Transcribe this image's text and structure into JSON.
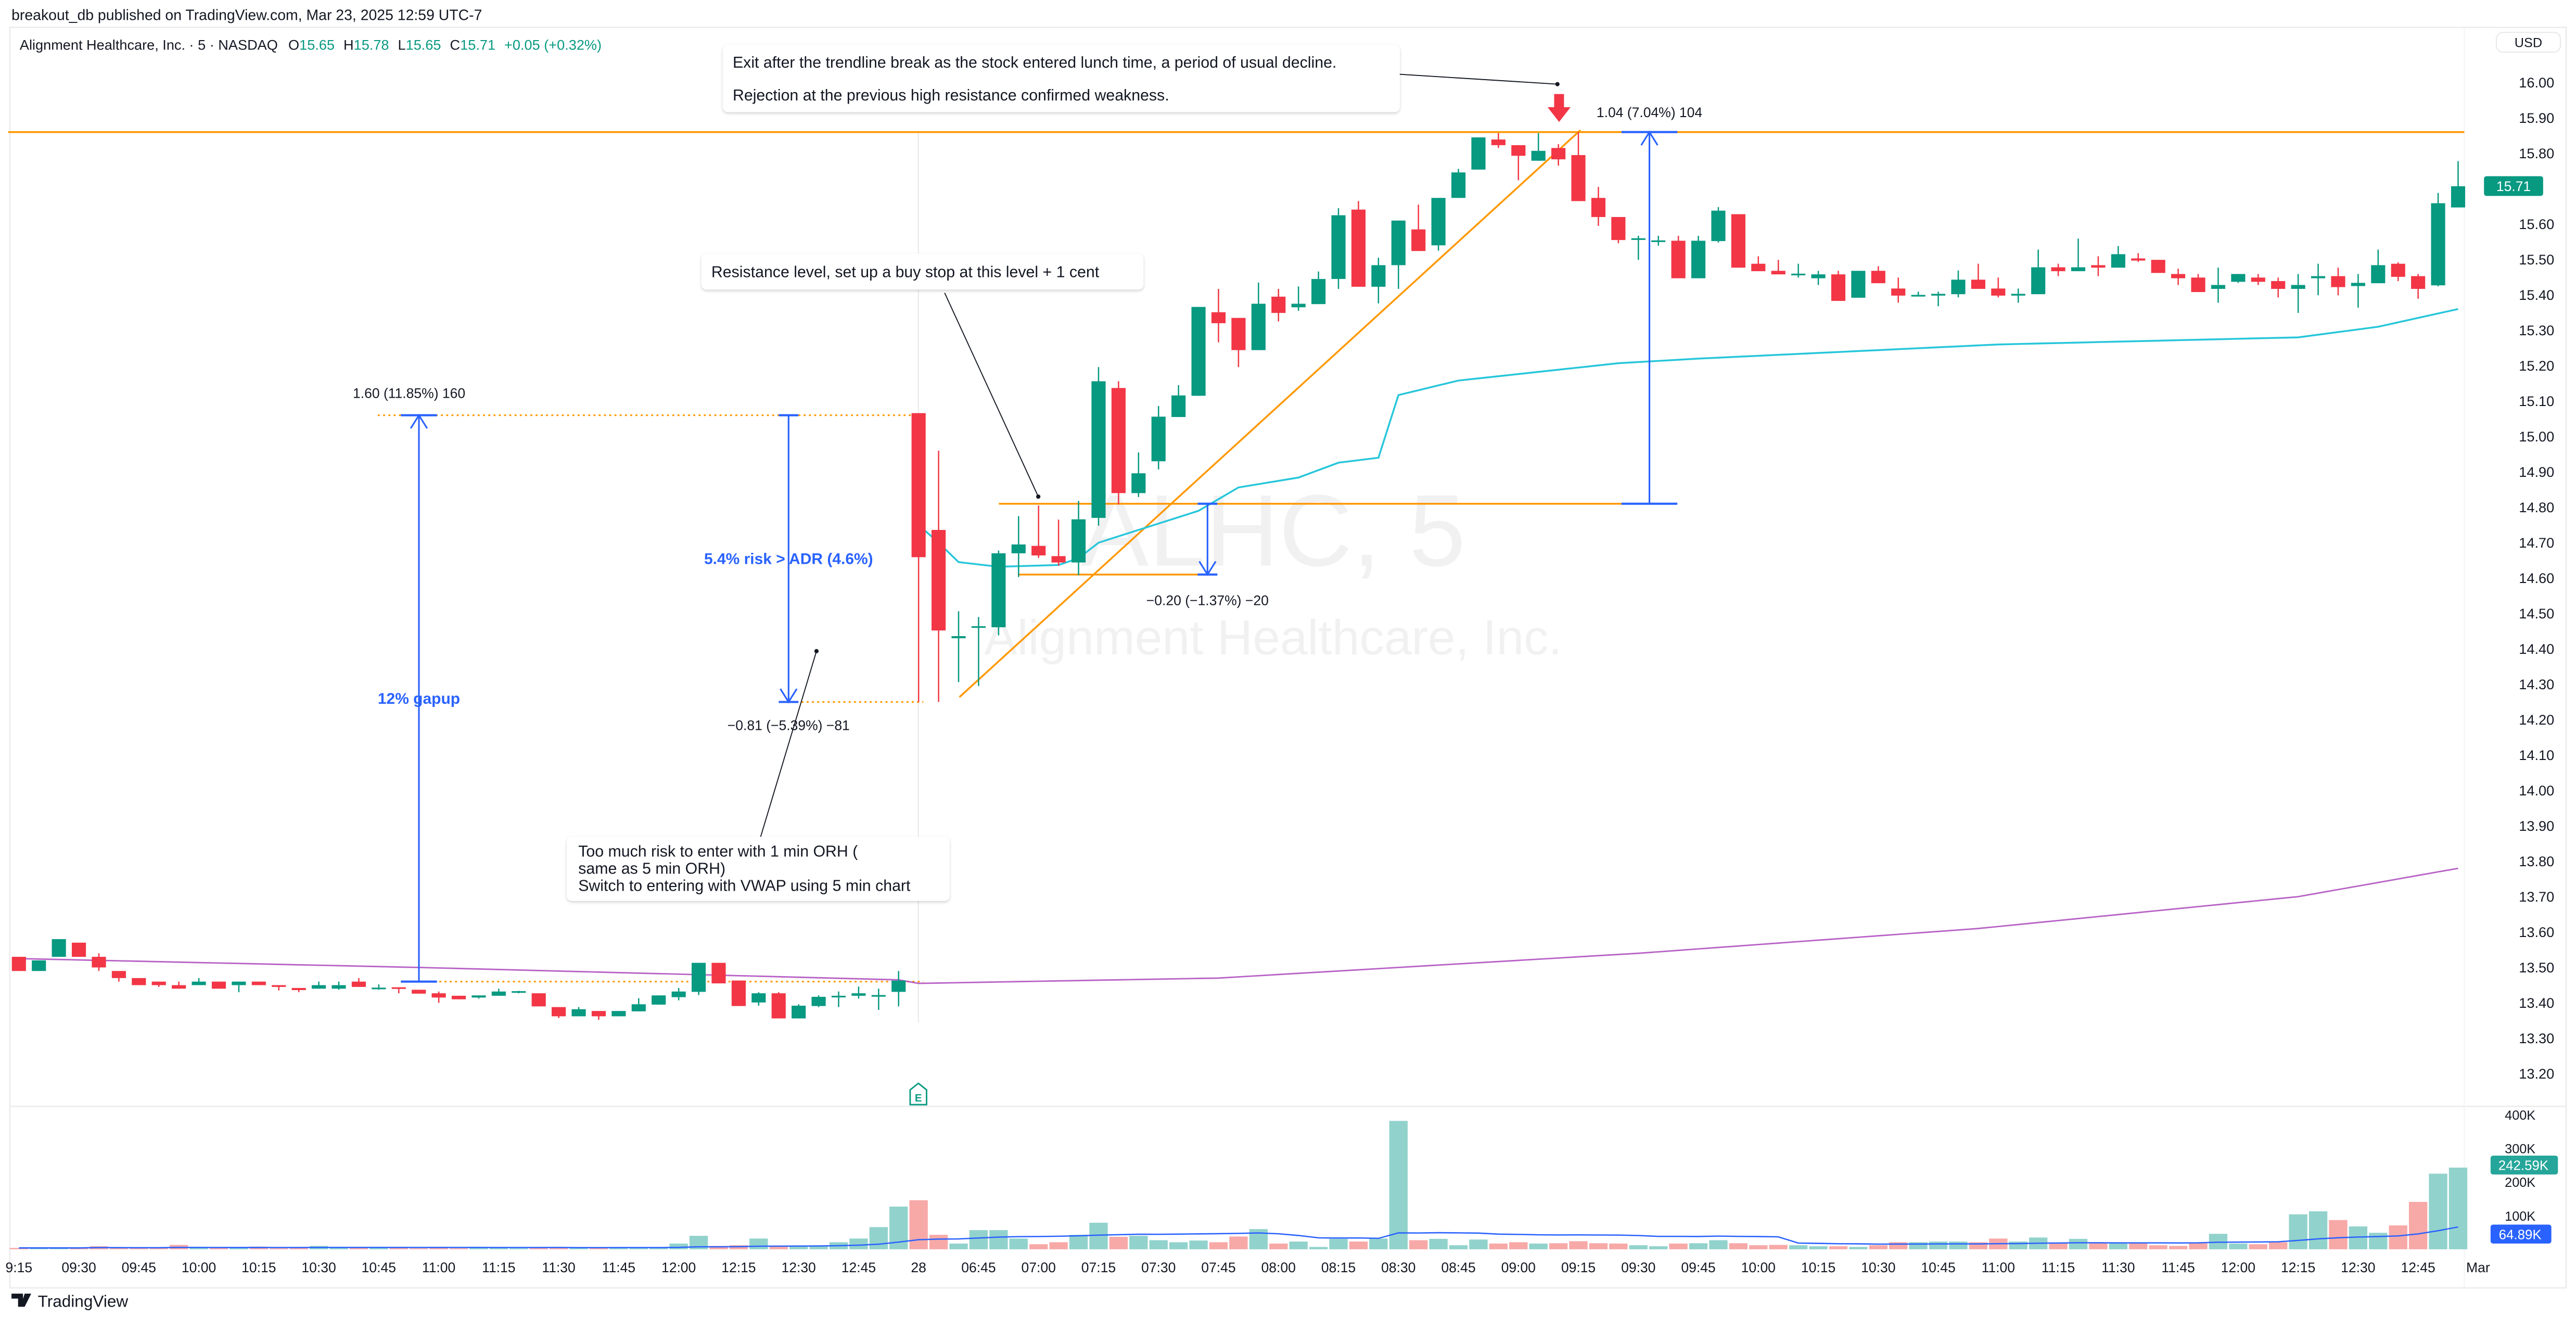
{
  "header": {
    "published": "breakout_db published on TradingView.com, Mar 23, 2025 12:59 UTC-7"
  },
  "legend": {
    "symbol": "Alignment Healthcare, Inc. · 5 · NASDAQ",
    "o_label": "O",
    "o": "15.65",
    "h_label": "H",
    "h": "15.78",
    "l_label": "L",
    "l": "15.65",
    "c_label": "C",
    "c": "15.71",
    "change": "+0.05 (+0.32%)"
  },
  "watermark": {
    "ticker": "ALHC, 5",
    "name": "Alignment Healthcare, Inc."
  },
  "annotations": {
    "exit_line1": "Exit after the trendline break as the stock entered lunch time, a period of usual decline.",
    "exit_line2": "Rejection at the previous high resistance confirmed weakness.",
    "resistance": "Resistance level, set up a buy stop at this level + 1 cent",
    "risk_line1": "Too much risk to enter with 1 min ORH (",
    "risk_line2": "same as 5 min ORH)",
    "risk_line3": "Switch to entering with VWAP using 5 min chart",
    "gapup_measure": "1.60 (11.85%) 160",
    "gapup_label": "12% gapup",
    "risk_measure": "−0.81 (−5.39%) −81",
    "risk_label": "5.4% risk > ADR (4.6%)",
    "stop_measure": "−0.20 (−1.37%) −20",
    "gain_measure": "1.04 (7.04%) 104",
    "earnings_marker": "E"
  },
  "price_axis": {
    "currency": "USD",
    "ticks": [
      "16.00",
      "15.90",
      "15.80",
      "15.70",
      "15.60",
      "15.50",
      "15.40",
      "15.30",
      "15.20",
      "15.10",
      "15.00",
      "14.90",
      "14.80",
      "14.70",
      "14.60",
      "14.50",
      "14.40",
      "14.30",
      "14.20",
      "14.10",
      "14.00",
      "13.90",
      "13.80",
      "13.70",
      "13.60",
      "13.50",
      "13.40",
      "13.30",
      "13.20"
    ],
    "last_price": "15.71"
  },
  "volume_axis": {
    "ticks": [
      "400K",
      "300K",
      "200K",
      "100K"
    ],
    "last_volume": "242.59K",
    "volume_ma": "64.89K"
  },
  "time_axis": {
    "labels": [
      "9:15",
      "09:30",
      "09:45",
      "10:00",
      "10:15",
      "10:30",
      "10:45",
      "11:00",
      "11:15",
      "11:30",
      "11:45",
      "12:00",
      "12:15",
      "12:30",
      "12:45",
      "28",
      "06:45",
      "07:00",
      "07:15",
      "07:30",
      "07:45",
      "08:00",
      "08:15",
      "08:30",
      "08:45",
      "09:00",
      "09:15",
      "09:30",
      "09:45",
      "10:00",
      "10:15",
      "10:30",
      "10:45",
      "11:00",
      "11:15",
      "11:30",
      "11:45",
      "12:00",
      "12:15",
      "12:30",
      "12:45",
      "Mar"
    ]
  },
  "footer": {
    "brand": "TradingView"
  },
  "colors": {
    "up": "#089981",
    "down": "#f23645",
    "up_vol": "#92d2cc",
    "down_vol": "#f7a9a7",
    "orange": "#ff9800",
    "blue": "#2962ff",
    "vwap": "#26c6da",
    "ma": "#ab47bc"
  },
  "chart_data": {
    "type": "candlestick",
    "title": "Alignment Healthcare, Inc. · 5 · NASDAQ",
    "ylabel": "USD",
    "ylim": [
      13.15,
      16.05
    ],
    "volume_ylim_k": [
      0,
      400
    ],
    "candle_fields": [
      "open",
      "high",
      "low",
      "close",
      "volume_k"
    ],
    "candles": [
      [
        13.53,
        13.53,
        13.49,
        13.49,
        4
      ],
      [
        13.49,
        13.52,
        13.49,
        13.52,
        4
      ],
      [
        13.53,
        13.58,
        13.53,
        13.58,
        4
      ],
      [
        13.57,
        13.57,
        13.53,
        13.53,
        4
      ],
      [
        13.53,
        13.54,
        13.49,
        13.5,
        9
      ],
      [
        13.49,
        13.49,
        13.46,
        13.47,
        4
      ],
      [
        13.47,
        13.47,
        13.45,
        13.45,
        4
      ],
      [
        13.46,
        13.46,
        13.445,
        13.45,
        4
      ],
      [
        13.45,
        13.46,
        13.44,
        13.44,
        13
      ],
      [
        13.45,
        13.47,
        13.45,
        13.46,
        4
      ],
      [
        13.46,
        13.46,
        13.44,
        13.44,
        4
      ],
      [
        13.45,
        13.46,
        13.43,
        13.46,
        4
      ],
      [
        13.46,
        13.46,
        13.45,
        13.45,
        8
      ],
      [
        13.45,
        13.45,
        13.435,
        13.445,
        3
      ],
      [
        13.442,
        13.442,
        13.43,
        13.436,
        5
      ],
      [
        13.44,
        13.46,
        13.44,
        13.45,
        10
      ],
      [
        13.44,
        13.46,
        13.437,
        13.45,
        4
      ],
      [
        13.46,
        13.47,
        13.445,
        13.445,
        5
      ],
      [
        13.44,
        13.452,
        13.437,
        13.443,
        6
      ],
      [
        13.444,
        13.444,
        13.427,
        13.442,
        6
      ],
      [
        13.437,
        13.437,
        13.426,
        13.426,
        3
      ],
      [
        13.427,
        13.432,
        13.4,
        13.415,
        5
      ],
      [
        13.42,
        13.42,
        13.41,
        13.41,
        3
      ],
      [
        13.415,
        13.421,
        13.412,
        13.421,
        6
      ],
      [
        13.42,
        13.44,
        13.42,
        13.432,
        5
      ],
      [
        13.43,
        13.434,
        13.427,
        13.433,
        3
      ],
      [
        13.427,
        13.427,
        13.39,
        13.39,
        5
      ],
      [
        13.388,
        13.388,
        13.357,
        13.362,
        6
      ],
      [
        13.362,
        13.388,
        13.362,
        13.382,
        4
      ],
      [
        13.377,
        13.377,
        13.352,
        13.362,
        4
      ],
      [
        13.362,
        13.377,
        13.362,
        13.377,
        5
      ],
      [
        13.376,
        13.413,
        13.376,
        13.396,
        6
      ],
      [
        13.395,
        13.421,
        13.395,
        13.421,
        6
      ],
      [
        13.416,
        13.442,
        13.407,
        13.432,
        17
      ],
      [
        13.431,
        13.513,
        13.422,
        13.513,
        40
      ],
      [
        13.513,
        13.513,
        13.455,
        13.455,
        10
      ],
      [
        13.463,
        13.463,
        13.391,
        13.391,
        12
      ],
      [
        13.401,
        13.43,
        13.392,
        13.427,
        32
      ],
      [
        13.427,
        13.43,
        13.356,
        13.356,
        10
      ],
      [
        13.356,
        13.396,
        13.356,
        13.392,
        10
      ],
      [
        13.391,
        13.421,
        13.388,
        13.417,
        10
      ],
      [
        13.416,
        13.432,
        13.388,
        13.42,
        21
      ],
      [
        13.42,
        13.446,
        13.412,
        13.427,
        32
      ],
      [
        13.42,
        13.44,
        13.38,
        13.422,
        66
      ],
      [
        13.431,
        13.49,
        13.39,
        13.463,
        127
      ],
      [
        15.066,
        15.066,
        14.25,
        14.659,
        146
      ],
      [
        14.736,
        14.96,
        14.25,
        14.452,
        43
      ],
      [
        14.43,
        14.506,
        14.306,
        14.436,
        17
      ],
      [
        14.46,
        14.49,
        14.295,
        14.464,
        57
      ],
      [
        14.461,
        14.678,
        14.438,
        14.67,
        57
      ],
      [
        14.67,
        14.775,
        14.603,
        14.695,
        32
      ],
      [
        14.691,
        14.805,
        14.657,
        14.664,
        15
      ],
      [
        14.662,
        14.765,
        14.635,
        14.644,
        21
      ],
      [
        14.644,
        14.818,
        14.608,
        14.766,
        43
      ],
      [
        14.77,
        15.196,
        14.748,
        15.156,
        79
      ],
      [
        15.137,
        15.156,
        14.808,
        14.84,
        37
      ],
      [
        14.84,
        14.955,
        14.829,
        14.896,
        40
      ],
      [
        14.93,
        15.086,
        14.907,
        15.056,
        27
      ],
      [
        15.055,
        15.145,
        15.055,
        15.116,
        21
      ],
      [
        15.115,
        15.366,
        15.115,
        15.366,
        26
      ],
      [
        15.351,
        15.417,
        15.266,
        15.32,
        21
      ],
      [
        15.335,
        15.335,
        15.196,
        15.244,
        38
      ],
      [
        15.244,
        15.435,
        15.244,
        15.375,
        60
      ],
      [
        15.395,
        15.417,
        15.325,
        15.349,
        17
      ],
      [
        15.365,
        15.424,
        15.355,
        15.375,
        23
      ],
      [
        15.374,
        15.466,
        15.374,
        15.445,
        7
      ],
      [
        15.445,
        15.645,
        15.417,
        15.625,
        31
      ],
      [
        15.641,
        15.665,
        15.423,
        15.423,
        23
      ],
      [
        15.423,
        15.505,
        15.376,
        15.484,
        32
      ],
      [
        15.484,
        15.61,
        15.417,
        15.61,
        382
      ],
      [
        15.585,
        15.655,
        15.524,
        15.524,
        27
      ],
      [
        15.54,
        15.674,
        15.525,
        15.674,
        31
      ],
      [
        15.674,
        15.756,
        15.674,
        15.746,
        12
      ],
      [
        15.754,
        15.845,
        15.754,
        15.845,
        29
      ],
      [
        15.839,
        15.857,
        15.815,
        15.823,
        17
      ],
      [
        15.823,
        15.823,
        15.724,
        15.793,
        21
      ],
      [
        15.779,
        15.857,
        15.779,
        15.807,
        17
      ],
      [
        15.815,
        15.826,
        15.765,
        15.783,
        18
      ],
      [
        15.795,
        15.86,
        15.665,
        15.665,
        24
      ],
      [
        15.674,
        15.705,
        15.595,
        15.62,
        18
      ],
      [
        15.62,
        15.62,
        15.546,
        15.555,
        17
      ],
      [
        15.558,
        15.567,
        15.499,
        15.56,
        12
      ],
      [
        15.552,
        15.567,
        15.539,
        15.554,
        9
      ],
      [
        15.553,
        15.567,
        15.447,
        15.447,
        17
      ],
      [
        15.447,
        15.567,
        15.447,
        15.553,
        18
      ],
      [
        15.552,
        15.648,
        15.548,
        15.638,
        27
      ],
      [
        15.628,
        15.628,
        15.477,
        15.477,
        18
      ],
      [
        15.488,
        15.509,
        15.467,
        15.467,
        12
      ],
      [
        15.468,
        15.499,
        15.458,
        15.458,
        13
      ],
      [
        15.458,
        15.488,
        15.449,
        15.46,
        12
      ],
      [
        15.447,
        15.468,
        15.428,
        15.458,
        9
      ],
      [
        15.458,
        15.468,
        15.383,
        15.383,
        9
      ],
      [
        15.392,
        15.468,
        15.392,
        15.468,
        7
      ],
      [
        15.468,
        15.481,
        15.433,
        15.433,
        12
      ],
      [
        15.418,
        15.449,
        15.378,
        15.398,
        21
      ],
      [
        15.398,
        15.409,
        15.398,
        15.4,
        21
      ],
      [
        15.398,
        15.409,
        15.368,
        15.403,
        23
      ],
      [
        15.402,
        15.469,
        15.393,
        15.443,
        23
      ],
      [
        15.443,
        15.488,
        15.417,
        15.417,
        21
      ],
      [
        15.418,
        15.449,
        15.393,
        15.398,
        32
      ],
      [
        15.398,
        15.418,
        15.378,
        15.403,
        23
      ],
      [
        15.402,
        15.528,
        15.402,
        15.478,
        35
      ],
      [
        15.478,
        15.488,
        15.453,
        15.467,
        20
      ],
      [
        15.467,
        15.559,
        15.467,
        15.478,
        31
      ],
      [
        15.484,
        15.509,
        15.453,
        15.477,
        20
      ],
      [
        15.477,
        15.538,
        15.477,
        15.515,
        18
      ],
      [
        15.503,
        15.518,
        15.493,
        15.497,
        18
      ],
      [
        15.499,
        15.499,
        15.462,
        15.462,
        12
      ],
      [
        15.459,
        15.474,
        15.428,
        15.447,
        10
      ],
      [
        15.449,
        15.459,
        15.408,
        15.408,
        18
      ],
      [
        15.417,
        15.477,
        15.378,
        15.428,
        46
      ],
      [
        15.437,
        15.459,
        15.434,
        15.459,
        17
      ],
      [
        15.449,
        15.459,
        15.428,
        15.437,
        15
      ],
      [
        15.439,
        15.449,
        15.393,
        15.417,
        21
      ],
      [
        15.417,
        15.459,
        15.349,
        15.428,
        104
      ],
      [
        15.447,
        15.488,
        15.399,
        15.453,
        113
      ],
      [
        15.453,
        15.477,
        15.399,
        15.422,
        87
      ],
      [
        15.425,
        15.459,
        15.364,
        15.434,
        68
      ],
      [
        15.433,
        15.528,
        15.433,
        15.484,
        49
      ],
      [
        15.488,
        15.492,
        15.439,
        15.451,
        71
      ],
      [
        15.453,
        15.459,
        15.389,
        15.417,
        141
      ],
      [
        15.427,
        15.688,
        15.424,
        15.659,
        225
      ],
      [
        15.647,
        15.778,
        15.647,
        15.707,
        243
      ]
    ],
    "vwap_points": [
      [
        45,
        14.75
      ],
      [
        46,
        14.7
      ],
      [
        47,
        14.645
      ],
      [
        49,
        14.632
      ],
      [
        52,
        14.637
      ],
      [
        53,
        14.656
      ],
      [
        54,
        14.7
      ],
      [
        57,
        14.754
      ],
      [
        59,
        14.79
      ],
      [
        61,
        14.856
      ],
      [
        64,
        14.884
      ],
      [
        66,
        14.926
      ],
      [
        68,
        14.94
      ],
      [
        69,
        15.117
      ],
      [
        72,
        15.158
      ],
      [
        80,
        15.207
      ],
      [
        84,
        15.22
      ],
      [
        99,
        15.26
      ],
      [
        114,
        15.28
      ],
      [
        118,
        15.31
      ],
      [
        122,
        15.36
      ]
    ],
    "ma_points": [
      [
        0,
        13.525
      ],
      [
        20,
        13.5
      ],
      [
        44,
        13.465
      ],
      [
        45,
        13.455
      ],
      [
        60,
        13.47
      ],
      [
        81,
        13.54
      ],
      [
        98,
        13.61
      ],
      [
        114,
        13.7
      ],
      [
        122,
        13.78
      ]
    ],
    "levels": {
      "previous_high_resistance": 15.86,
      "resistance": 14.81,
      "stop": 14.61,
      "prior_close": 13.46,
      "gap_open": 15.06,
      "gap_low": 14.25
    }
  }
}
